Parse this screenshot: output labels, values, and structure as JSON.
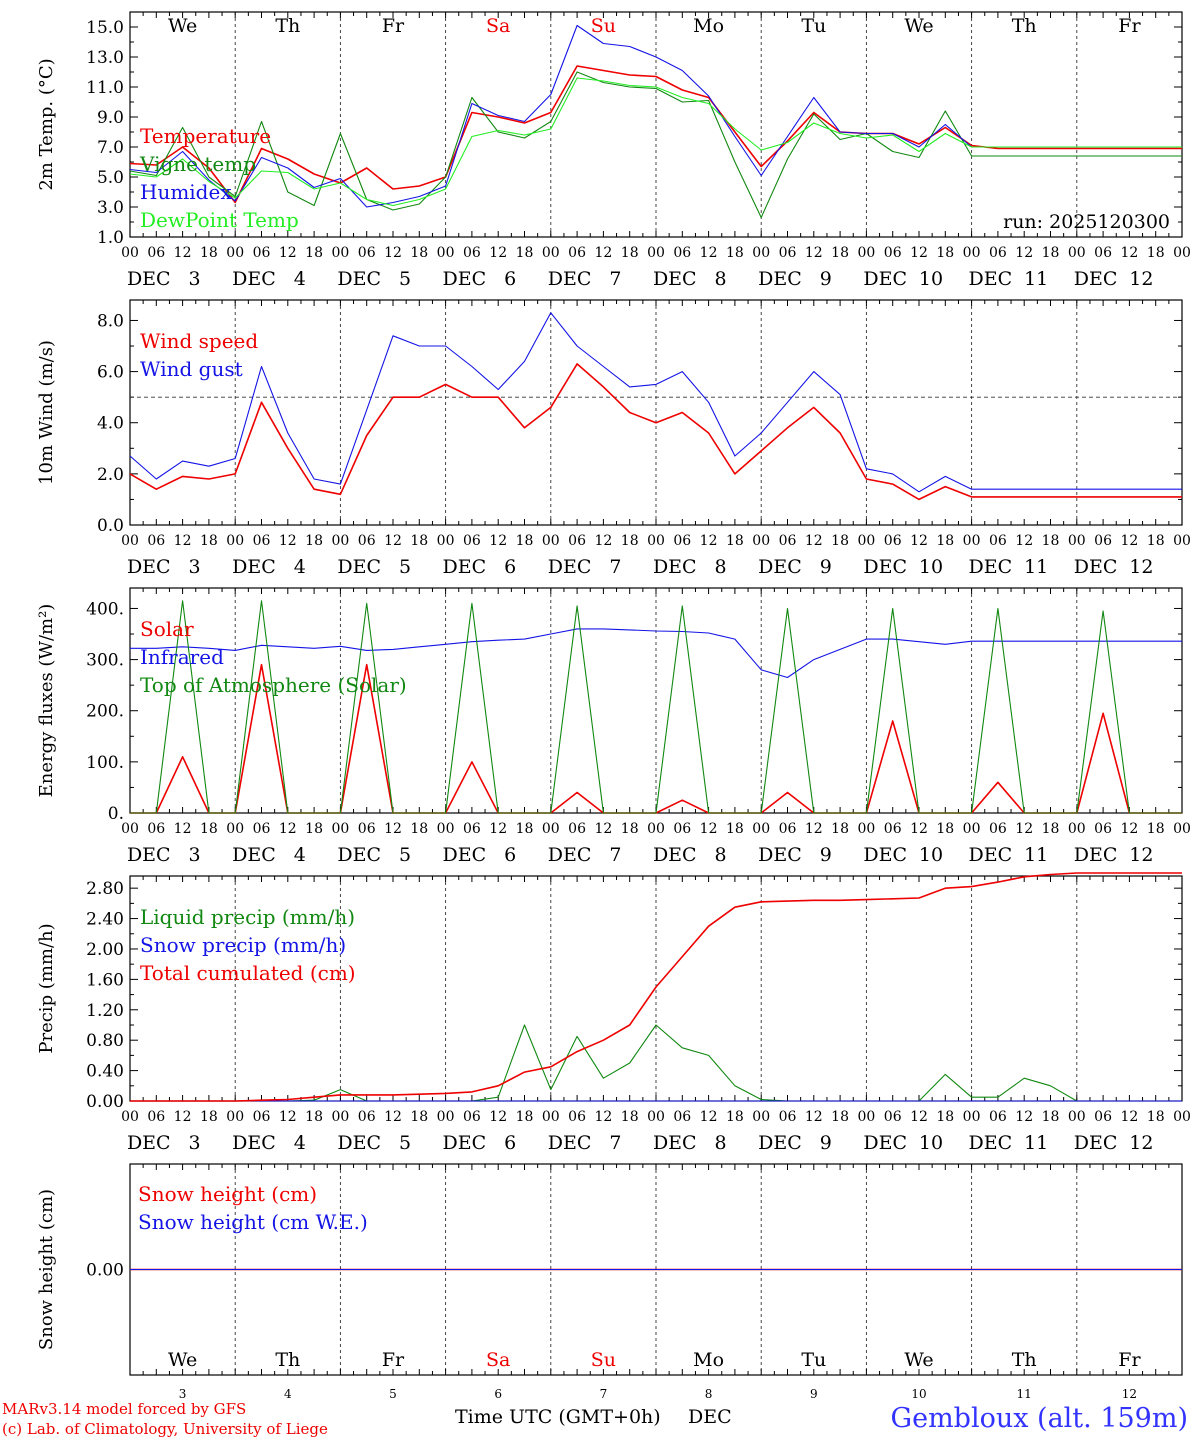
{
  "footer": {
    "model_line1": "MARv3.14 model forced by GFS",
    "model_line2": "(c) Lab. of Climatology, University of Liege",
    "xaxis_title": "Time UTC (GMT+0h)",
    "xaxis_month": "DEC",
    "station": "Gembloux (alt. 159m)"
  },
  "days": [
    {
      "name": "We",
      "date": "3",
      "weekend": false
    },
    {
      "name": "Th",
      "date": "4",
      "weekend": false
    },
    {
      "name": "Fr",
      "date": "5",
      "weekend": false
    },
    {
      "name": "Sa",
      "date": "6",
      "weekend": true
    },
    {
      "name": "Su",
      "date": "7",
      "weekend": true
    },
    {
      "name": "Mo",
      "date": "8",
      "weekend": false
    },
    {
      "name": "Tu",
      "date": "9",
      "weekend": false
    },
    {
      "name": "We",
      "date": "10",
      "weekend": false
    },
    {
      "name": "Th",
      "date": "11",
      "weekend": false
    },
    {
      "name": "Fr",
      "date": "12",
      "weekend": false
    }
  ],
  "hour_labels": [
    "00",
    "06",
    "12",
    "18"
  ],
  "month": "DEC",
  "colors": {
    "red": "#ee0000",
    "green": "#118811",
    "blue": "#1414e6",
    "lightgreen": "#22ee22",
    "axis": "#000000",
    "grid": "#333333"
  },
  "chart_data": [
    {
      "type": "line",
      "id": "temp",
      "ylabel": "2m Temp. (°C)",
      "ylim": [
        1.0,
        16.0
      ],
      "yticks": [
        "1.0",
        "3.0",
        "5.0",
        "7.0",
        "9.0",
        "11.0",
        "13.0",
        "15.0"
      ],
      "ytick_values": [
        1,
        3,
        5,
        7,
        9,
        11,
        13,
        15
      ],
      "annotation": "run: 2025120300",
      "x_hours": [
        0,
        6,
        12,
        18,
        24,
        30,
        36,
        42,
        48,
        54,
        60,
        66,
        72,
        78,
        84,
        90,
        96,
        102,
        108,
        114,
        120,
        126,
        132,
        138,
        144,
        150,
        156,
        162,
        168,
        174,
        180,
        186,
        192,
        198,
        204,
        210,
        216,
        222,
        228,
        234
      ],
      "series": [
        {
          "name": "Temperature",
          "color": "red",
          "values": [
            5.9,
            5.8,
            7.0,
            5.6,
            3.3,
            6.9,
            6.2,
            5.2,
            4.6,
            5.6,
            4.2,
            4.4,
            5.0,
            9.3,
            9.0,
            8.6,
            9.3,
            12.4,
            12.1,
            11.8,
            11.7,
            10.8,
            10.3,
            8.0,
            5.7,
            7.4,
            9.3,
            8.0,
            7.9,
            7.9,
            7.2,
            8.3,
            7.1,
            6.9,
            6.9,
            6.9,
            6.9,
            6.9,
            6.9,
            6.9
          ]
        },
        {
          "name": "Vigne temp",
          "color": "green",
          "values": [
            5.4,
            5.1,
            8.3,
            5.0,
            3.7,
            8.7,
            4.0,
            3.1,
            7.9,
            3.5,
            2.8,
            3.2,
            5.0,
            10.3,
            8.0,
            7.6,
            8.7,
            12.0,
            11.3,
            11.0,
            10.9,
            10.0,
            10.1,
            6.0,
            2.3,
            6.2,
            9.2,
            7.5,
            7.9,
            6.7,
            6.3,
            9.4,
            6.4,
            6.4,
            6.4,
            6.4,
            6.4,
            6.4,
            6.4,
            6.4
          ]
        },
        {
          "name": "Humidex",
          "color": "blue",
          "values": [
            5.5,
            5.3,
            6.7,
            4.8,
            3.4,
            6.3,
            5.6,
            4.3,
            4.9,
            3.0,
            3.3,
            3.7,
            4.4,
            9.9,
            9.1,
            8.7,
            10.5,
            15.1,
            13.9,
            13.7,
            13.0,
            12.1,
            10.4,
            7.7,
            5.1,
            7.7,
            10.3,
            8.0,
            7.9,
            7.9,
            7.0,
            8.5,
            7.0,
            7.0,
            7.0,
            7.0,
            7.0,
            7.0,
            7.0,
            7.0
          ]
        },
        {
          "name": "DewPoint Temp",
          "color": "lightgreen",
          "values": [
            5.2,
            5.0,
            6.2,
            4.7,
            3.6,
            5.4,
            5.3,
            4.2,
            4.6,
            3.5,
            3.1,
            3.5,
            4.2,
            7.7,
            8.1,
            7.8,
            8.2,
            11.6,
            11.4,
            11.1,
            11.0,
            10.3,
            9.9,
            8.2,
            6.8,
            7.3,
            8.6,
            7.9,
            7.6,
            7.8,
            6.7,
            7.9,
            7.0,
            7.0,
            7.0,
            7.0,
            7.0,
            7.0,
            7.0,
            7.0
          ]
        }
      ]
    },
    {
      "type": "line",
      "id": "wind",
      "ylabel": "10m Wind (m/s)",
      "ylim": [
        0.0,
        8.8
      ],
      "yticks": [
        "0.0",
        "2.0",
        "4.0",
        "6.0",
        "8.0"
      ],
      "ytick_values": [
        0,
        2,
        4,
        6,
        8
      ],
      "reference_line": 5.0,
      "x_hours": [
        0,
        6,
        12,
        18,
        24,
        30,
        36,
        42,
        48,
        54,
        60,
        66,
        72,
        78,
        84,
        90,
        96,
        102,
        108,
        114,
        120,
        126,
        132,
        138,
        144,
        150,
        156,
        162,
        168,
        174,
        180,
        186,
        192,
        198,
        204,
        210,
        216,
        222,
        228,
        234
      ],
      "series": [
        {
          "name": "Wind speed",
          "color": "red",
          "values": [
            2.0,
            1.4,
            1.9,
            1.8,
            2.0,
            4.8,
            3.0,
            1.4,
            1.2,
            3.5,
            5.0,
            5.0,
            5.5,
            5.0,
            5.0,
            3.8,
            4.6,
            6.3,
            5.4,
            4.4,
            4.0,
            4.4,
            3.6,
            2.0,
            2.9,
            3.8,
            4.6,
            3.6,
            1.8,
            1.6,
            1.0,
            1.5,
            1.1,
            1.1,
            1.1,
            1.1,
            1.1,
            1.1,
            1.1,
            1.1
          ]
        },
        {
          "name": "Wind gust",
          "color": "blue",
          "values": [
            2.7,
            1.8,
            2.5,
            2.3,
            2.6,
            6.2,
            3.6,
            1.8,
            1.6,
            4.5,
            7.4,
            7.0,
            7.0,
            6.2,
            5.3,
            6.4,
            8.3,
            7.0,
            6.2,
            5.4,
            5.5,
            6.0,
            4.8,
            2.7,
            3.6,
            4.8,
            6.0,
            5.1,
            2.2,
            2.0,
            1.3,
            1.9,
            1.4,
            1.4,
            1.4,
            1.4,
            1.4,
            1.4,
            1.4,
            1.4
          ]
        }
      ]
    },
    {
      "type": "line",
      "id": "energy",
      "ylabel": "Energy fluxes (W/m²)",
      "ylim": [
        0,
        440
      ],
      "yticks": [
        "0.",
        "100.",
        "200.",
        "300.",
        "400."
      ],
      "ytick_values": [
        0,
        100,
        200,
        300,
        400
      ],
      "x_hours": [
        0,
        6,
        12,
        18,
        24,
        30,
        36,
        42,
        48,
        54,
        60,
        66,
        72,
        78,
        84,
        90,
        96,
        102,
        108,
        114,
        120,
        126,
        132,
        138,
        144,
        150,
        156,
        162,
        168,
        174,
        180,
        186,
        192,
        198,
        204,
        210,
        216,
        222,
        228,
        234
      ],
      "series": [
        {
          "name": "Solar",
          "color": "red",
          "values": [
            0,
            0,
            110,
            0,
            0,
            290,
            0,
            0,
            0,
            290,
            0,
            0,
            0,
            100,
            0,
            0,
            0,
            40,
            0,
            0,
            0,
            25,
            0,
            0,
            0,
            40,
            0,
            0,
            0,
            180,
            0,
            0,
            0,
            60,
            0,
            0,
            0,
            195,
            0,
            0
          ]
        },
        {
          "name": "Infrared",
          "color": "blue",
          "values": [
            322,
            322,
            325,
            322,
            318,
            328,
            325,
            322,
            326,
            318,
            320,
            325,
            330,
            335,
            338,
            340,
            350,
            360,
            360,
            358,
            356,
            355,
            352,
            340,
            280,
            265,
            300,
            320,
            340,
            340,
            335,
            330,
            336,
            336,
            336,
            336,
            336,
            336,
            336,
            336
          ]
        },
        {
          "name": "Top of Atmosphere (Solar)",
          "color": "green",
          "values": [
            0,
            0,
            415,
            0,
            0,
            415,
            0,
            0,
            0,
            410,
            0,
            0,
            0,
            410,
            0,
            0,
            0,
            405,
            0,
            0,
            0,
            405,
            0,
            0,
            0,
            400,
            0,
            0,
            0,
            400,
            0,
            0,
            0,
            400,
            0,
            0,
            0,
            395,
            0,
            0
          ]
        }
      ]
    },
    {
      "type": "line",
      "id": "precip",
      "ylabel": "Precip (mm/h)",
      "ylim": [
        0.0,
        2.96
      ],
      "yticks": [
        "0.00",
        "0.40",
        "0.80",
        "1.20",
        "1.60",
        "2.00",
        "2.40",
        "2.80"
      ],
      "ytick_values": [
        0,
        0.4,
        0.8,
        1.2,
        1.6,
        2.0,
        2.4,
        2.8
      ],
      "x_hours": [
        0,
        6,
        12,
        18,
        24,
        30,
        36,
        42,
        48,
        54,
        60,
        66,
        72,
        78,
        84,
        90,
        96,
        102,
        108,
        114,
        120,
        126,
        132,
        138,
        144,
        150,
        156,
        162,
        168,
        174,
        180,
        186,
        192,
        198,
        204,
        210,
        216,
        222,
        228,
        234
      ],
      "series": [
        {
          "name": "Liquid precip (mm/h)",
          "color": "green",
          "values": [
            0,
            0,
            0,
            0,
            0,
            0,
            0,
            0.01,
            0.15,
            0,
            0,
            0,
            0,
            0,
            0.05,
            1.0,
            0.15,
            0.85,
            0.3,
            0.5,
            1.0,
            0.7,
            0.6,
            0.2,
            0.02,
            0,
            0,
            0,
            0,
            0,
            0,
            0.35,
            0.05,
            0.05,
            0.3,
            0.2,
            0,
            0,
            0,
            0
          ]
        },
        {
          "name": "Snow precip (mm/h)",
          "color": "blue",
          "values": [
            0,
            0,
            0,
            0,
            0,
            0,
            0,
            0,
            0,
            0,
            0,
            0,
            0,
            0,
            0,
            0,
            0,
            0,
            0,
            0,
            0,
            0,
            0,
            0,
            0,
            0,
            0,
            0,
            0,
            0,
            0,
            0,
            0,
            0,
            0,
            0,
            0,
            0,
            0,
            0
          ]
        },
        {
          "name": "Total cumulated (cm)",
          "color": "red",
          "values": [
            0,
            0,
            0,
            0,
            0,
            0.01,
            0.02,
            0.05,
            0.08,
            0.08,
            0.08,
            0.09,
            0.1,
            0.12,
            0.2,
            0.38,
            0.45,
            0.65,
            0.8,
            1.0,
            1.5,
            1.9,
            2.3,
            2.55,
            2.62,
            2.63,
            2.64,
            2.64,
            2.65,
            2.66,
            2.67,
            2.8,
            2.82,
            2.88,
            2.95,
            2.98,
            3.0,
            3.0,
            3.0,
            3.0
          ]
        }
      ]
    },
    {
      "type": "line",
      "id": "snow",
      "ylabel": "Snow height (cm)",
      "ylim": [
        -1.0,
        1.0
      ],
      "yticks": [
        "0.00"
      ],
      "ytick_values": [
        0
      ],
      "x_hours": [
        0,
        240
      ],
      "series": [
        {
          "name": "Snow height (cm)",
          "color": "red",
          "values": [
            0,
            0
          ]
        },
        {
          "name": "Snow height (cm W.E.)",
          "color": "blue",
          "values": [
            0,
            0
          ]
        }
      ]
    }
  ]
}
